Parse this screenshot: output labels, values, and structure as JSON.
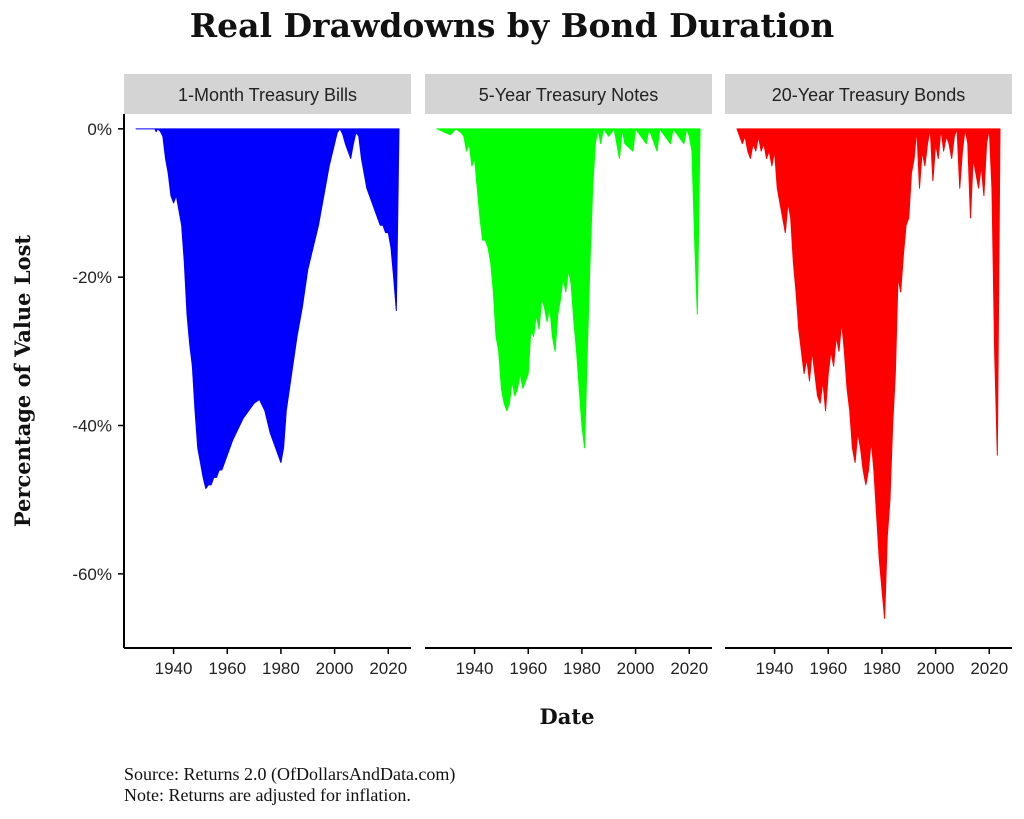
{
  "title": "Real Drawdowns by Bond Duration",
  "source": "Source: Returns 2.0 (OfDollarsAndData.com)",
  "note": "Note: Returns are adjusted for inflation.",
  "chart_data": {
    "type": "area",
    "xlabel": "Date",
    "ylabel": "Percentage of Value Lost",
    "xlim": [
      1926,
      2024
    ],
    "ylim": [
      -70,
      2
    ],
    "x_ticks": [
      1940,
      1960,
      1980,
      2000,
      2020
    ],
    "y_ticks": [
      0,
      -20,
      -40,
      -60
    ],
    "y_tick_labels": [
      "0%",
      "-20%",
      "-40%",
      "-60%"
    ],
    "grid": false,
    "panels": [
      {
        "name": "1-Month Treasury Bills",
        "color": "#0000FF",
        "points": [
          [
            1926,
            0
          ],
          [
            1933,
            0
          ],
          [
            1933.5,
            -0.4
          ],
          [
            1934,
            0
          ],
          [
            1935,
            -0.3
          ],
          [
            1936,
            -1
          ],
          [
            1937,
            -4
          ],
          [
            1938,
            -6
          ],
          [
            1939,
            -9
          ],
          [
            1940,
            -10
          ],
          [
            1941,
            -9
          ],
          [
            1942,
            -11
          ],
          [
            1943,
            -13
          ],
          [
            1944,
            -18
          ],
          [
            1945,
            -25
          ],
          [
            1946,
            -29
          ],
          [
            1947,
            -32
          ],
          [
            1948,
            -38
          ],
          [
            1949,
            -43
          ],
          [
            1950,
            -45
          ],
          [
            1951,
            -47
          ],
          [
            1952,
            -48.5
          ],
          [
            1953,
            -48
          ],
          [
            1954,
            -48
          ],
          [
            1955,
            -47
          ],
          [
            1956,
            -47
          ],
          [
            1957,
            -46
          ],
          [
            1958,
            -46
          ],
          [
            1959,
            -45
          ],
          [
            1960,
            -44
          ],
          [
            1962,
            -42
          ],
          [
            1964,
            -40.5
          ],
          [
            1966,
            -39
          ],
          [
            1968,
            -38
          ],
          [
            1970,
            -37
          ],
          [
            1972,
            -36.5
          ],
          [
            1974,
            -38
          ],
          [
            1976,
            -41
          ],
          [
            1978,
            -43
          ],
          [
            1980,
            -45
          ],
          [
            1981,
            -43
          ],
          [
            1982,
            -38
          ],
          [
            1984,
            -33
          ],
          [
            1986,
            -28
          ],
          [
            1988,
            -24
          ],
          [
            1990,
            -19
          ],
          [
            1992,
            -16
          ],
          [
            1994,
            -13
          ],
          [
            1996,
            -9
          ],
          [
            1998,
            -5
          ],
          [
            2000,
            -2
          ],
          [
            2001,
            -0.5
          ],
          [
            2002,
            0
          ],
          [
            2003,
            -0.7
          ],
          [
            2004,
            -2
          ],
          [
            2005,
            -3
          ],
          [
            2006,
            -4
          ],
          [
            2007,
            -2
          ],
          [
            2008,
            -0.5
          ],
          [
            2009,
            -1
          ],
          [
            2010,
            -4
          ],
          [
            2011,
            -6
          ],
          [
            2012,
            -8
          ],
          [
            2013,
            -9
          ],
          [
            2014,
            -10
          ],
          [
            2015,
            -11
          ],
          [
            2016,
            -12
          ],
          [
            2017,
            -13
          ],
          [
            2018,
            -13
          ],
          [
            2019,
            -14
          ],
          [
            2020,
            -14
          ],
          [
            2021,
            -16
          ],
          [
            2022,
            -20
          ],
          [
            2023,
            -24.5
          ],
          [
            2024,
            0
          ]
        ]
      },
      {
        "name": "5-Year Treasury Notes",
        "color": "#00FF00",
        "points": [
          [
            1926,
            0
          ],
          [
            1931,
            -0.8
          ],
          [
            1933,
            0
          ],
          [
            1935,
            -0.5
          ],
          [
            1936,
            -1
          ],
          [
            1937,
            -3
          ],
          [
            1938,
            -2
          ],
          [
            1939,
            -5
          ],
          [
            1940,
            -4
          ],
          [
            1941,
            -8
          ],
          [
            1942,
            -12
          ],
          [
            1943,
            -15
          ],
          [
            1944,
            -15
          ],
          [
            1945,
            -16
          ],
          [
            1946,
            -18
          ],
          [
            1947,
            -22
          ],
          [
            1948,
            -28
          ],
          [
            1949,
            -30
          ],
          [
            1950,
            -35
          ],
          [
            1951,
            -37
          ],
          [
            1952,
            -38
          ],
          [
            1953,
            -37
          ],
          [
            1954,
            -34
          ],
          [
            1955,
            -36
          ],
          [
            1956,
            -35
          ],
          [
            1957,
            -33
          ],
          [
            1958,
            -35
          ],
          [
            1959,
            -34
          ],
          [
            1960,
            -33
          ],
          [
            1961,
            -27
          ],
          [
            1962,
            -28
          ],
          [
            1963,
            -25
          ],
          [
            1964,
            -27
          ],
          [
            1965,
            -23
          ],
          [
            1966,
            -24
          ],
          [
            1967,
            -26
          ],
          [
            1968,
            -24
          ],
          [
            1969,
            -28
          ],
          [
            1970,
            -30
          ],
          [
            1971,
            -25
          ],
          [
            1972,
            -23
          ],
          [
            1973,
            -20
          ],
          [
            1974,
            -22
          ],
          [
            1975,
            -19
          ],
          [
            1976,
            -21
          ],
          [
            1977,
            -26
          ],
          [
            1978,
            -30
          ],
          [
            1979,
            -35
          ],
          [
            1980,
            -40
          ],
          [
            1981,
            -43
          ],
          [
            1982,
            -30
          ],
          [
            1983,
            -18
          ],
          [
            1984,
            -8
          ],
          [
            1985,
            -2
          ],
          [
            1986,
            0
          ],
          [
            1987,
            -2
          ],
          [
            1988,
            0
          ],
          [
            1990,
            -1
          ],
          [
            1992,
            0
          ],
          [
            1994,
            -4
          ],
          [
            1995,
            0
          ],
          [
            1996,
            -2
          ],
          [
            1999,
            -3
          ],
          [
            2000,
            0
          ],
          [
            2004,
            -2
          ],
          [
            2005,
            0
          ],
          [
            2008,
            -3
          ],
          [
            2009,
            0
          ],
          [
            2013,
            -2
          ],
          [
            2014,
            0
          ],
          [
            2016,
            -1
          ],
          [
            2018,
            -2
          ],
          [
            2019,
            0
          ],
          [
            2020,
            -1
          ],
          [
            2021,
            -3
          ],
          [
            2022,
            -15
          ],
          [
            2023,
            -25
          ],
          [
            2024,
            0
          ]
        ]
      },
      {
        "name": "20-Year Treasury Bonds",
        "color": "#FF0000",
        "points": [
          [
            1926,
            0
          ],
          [
            1928,
            -2
          ],
          [
            1929,
            -1
          ],
          [
            1930,
            -3
          ],
          [
            1931,
            -4
          ],
          [
            1932,
            -2
          ],
          [
            1933,
            -3
          ],
          [
            1934,
            -1
          ],
          [
            1935,
            -3
          ],
          [
            1936,
            -2
          ],
          [
            1937,
            -4
          ],
          [
            1938,
            -3
          ],
          [
            1939,
            -5
          ],
          [
            1940,
            -3
          ],
          [
            1941,
            -8
          ],
          [
            1942,
            -10
          ],
          [
            1943,
            -12
          ],
          [
            1944,
            -14
          ],
          [
            1945,
            -10
          ],
          [
            1946,
            -12
          ],
          [
            1947,
            -18
          ],
          [
            1948,
            -22
          ],
          [
            1949,
            -27
          ],
          [
            1950,
            -30
          ],
          [
            1951,
            -33
          ],
          [
            1952,
            -31
          ],
          [
            1953,
            -34
          ],
          [
            1954,
            -30
          ],
          [
            1955,
            -33
          ],
          [
            1956,
            -36
          ],
          [
            1957,
            -37
          ],
          [
            1958,
            -34
          ],
          [
            1959,
            -38
          ],
          [
            1960,
            -33
          ],
          [
            1961,
            -30
          ],
          [
            1962,
            -32
          ],
          [
            1963,
            -28
          ],
          [
            1964,
            -30
          ],
          [
            1965,
            -26
          ],
          [
            1966,
            -30
          ],
          [
            1967,
            -35
          ],
          [
            1968,
            -38
          ],
          [
            1969,
            -43
          ],
          [
            1970,
            -45
          ],
          [
            1971,
            -41
          ],
          [
            1972,
            -43
          ],
          [
            1973,
            -46
          ],
          [
            1974,
            -48
          ],
          [
            1975,
            -46
          ],
          [
            1976,
            -42
          ],
          [
            1977,
            -46
          ],
          [
            1978,
            -52
          ],
          [
            1979,
            -58
          ],
          [
            1980,
            -62
          ],
          [
            1981,
            -66
          ],
          [
            1982,
            -55
          ],
          [
            1983,
            -50
          ],
          [
            1984,
            -40
          ],
          [
            1985,
            -33
          ],
          [
            1986,
            -20
          ],
          [
            1987,
            -22
          ],
          [
            1988,
            -17
          ],
          [
            1989,
            -13
          ],
          [
            1990,
            -12
          ],
          [
            1991,
            -6
          ],
          [
            1992,
            -4
          ],
          [
            1993,
            0
          ],
          [
            1994,
            -8
          ],
          [
            1995,
            -3
          ],
          [
            1996,
            -5
          ],
          [
            1997,
            -2
          ],
          [
            1998,
            0
          ],
          [
            1999,
            -7
          ],
          [
            2000,
            -2
          ],
          [
            2001,
            -4
          ],
          [
            2002,
            0
          ],
          [
            2003,
            -3
          ],
          [
            2004,
            -1
          ],
          [
            2005,
            -2
          ],
          [
            2006,
            -4
          ],
          [
            2007,
            -1
          ],
          [
            2008,
            0
          ],
          [
            2009,
            -8
          ],
          [
            2010,
            -3
          ],
          [
            2011,
            0
          ],
          [
            2012,
            -2
          ],
          [
            2013,
            -12
          ],
          [
            2014,
            -4
          ],
          [
            2015,
            -6
          ],
          [
            2016,
            -8
          ],
          [
            2017,
            -5
          ],
          [
            2018,
            -9
          ],
          [
            2019,
            -2
          ],
          [
            2020,
            0
          ],
          [
            2021,
            -8
          ],
          [
            2022,
            -30
          ],
          [
            2023,
            -44
          ],
          [
            2024,
            0
          ]
        ]
      }
    ]
  }
}
